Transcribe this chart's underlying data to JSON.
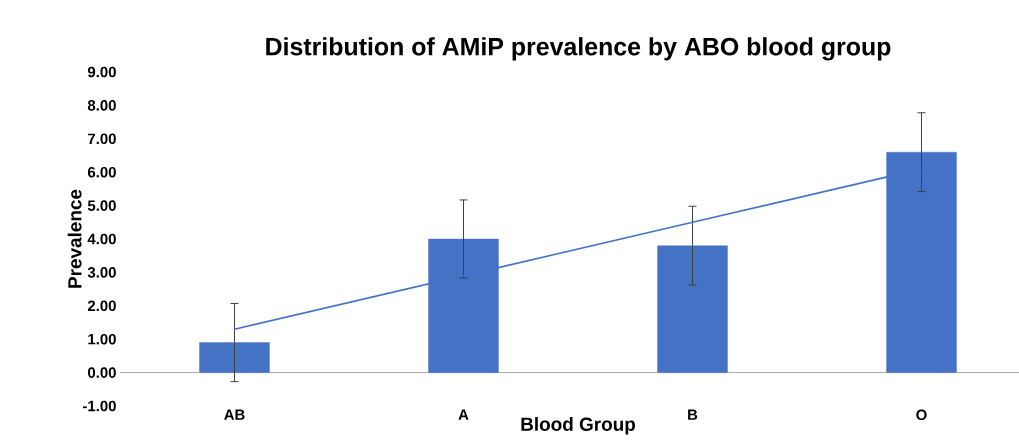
{
  "chart_data": {
    "type": "bar",
    "title": "Distribution of AMiP prevalence by ABO blood group",
    "xlabel": "Blood Group",
    "ylabel": "Prevalence",
    "categories": [
      "AB",
      "A",
      "B",
      "O"
    ],
    "series": [
      {
        "color": "#4472c4",
        "values": [
          0.9,
          4.0,
          3.8,
          6.6
        ],
        "errors": [
          1.17,
          1.17,
          1.18,
          1.18
        ]
      },
      {
        "type": "line",
        "color": "#4472c4",
        "values": [
          1.3,
          2.9,
          4.5,
          6.1
        ]
      }
    ],
    "ylim": [
      -1,
      9
    ],
    "yticks": [
      {
        "value": -1,
        "label": "-1.00"
      },
      {
        "value": 0,
        "label": "0.00"
      },
      {
        "value": 1,
        "label": "1.00"
      },
      {
        "value": 2,
        "label": "2.00"
      },
      {
        "value": 3,
        "label": "3.00"
      },
      {
        "value": 4,
        "label": "4.00"
      },
      {
        "value": 5,
        "label": "5.00"
      },
      {
        "value": 6,
        "label": "6.00"
      },
      {
        "value": 7,
        "label": "7.00"
      },
      {
        "value": 8,
        "label": "8.00"
      },
      {
        "value": 9,
        "label": "9.00"
      }
    ],
    "grid": false
  }
}
